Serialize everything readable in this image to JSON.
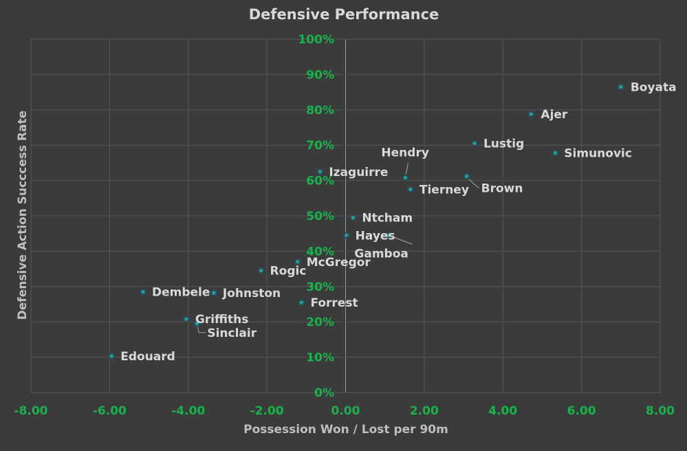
{
  "chart_data": {
    "type": "scatter",
    "title": "Defensive Performance",
    "xlabel": "Possession Won / Lost per 90m",
    "ylabel": "Defensive Action Succcess Rate",
    "xlim": [
      -8,
      8
    ],
    "ylim": [
      0,
      100
    ],
    "x_ticks": [
      "-8.00",
      "-6.00",
      "-4.00",
      "-2.00",
      "0.00",
      "2.00",
      "4.00",
      "6.00",
      "8.00"
    ],
    "y_ticks": [
      "0%",
      "10%",
      "20%",
      "30%",
      "40%",
      "50%",
      "60%",
      "70%",
      "80%",
      "90%",
      "100%"
    ],
    "grid": true,
    "colors": {
      "background": "#3b3b3b",
      "tick_text": "#16b44a",
      "point": "#1aa7a0",
      "label": "#d9d9d9"
    },
    "points": [
      {
        "label": "Boyata",
        "x": 7.0,
        "y": 86.5
      },
      {
        "label": "Ajer",
        "x": 4.72,
        "y": 78.8
      },
      {
        "label": "Lustig",
        "x": 3.28,
        "y": 70.5
      },
      {
        "label": "Simunovic",
        "x": 5.33,
        "y": 67.8
      },
      {
        "label": "Hendry",
        "x": 1.52,
        "y": 60.8
      },
      {
        "label": "Izaguirre",
        "x": -0.65,
        "y": 62.5
      },
      {
        "label": "Brown",
        "x": 3.08,
        "y": 61.2
      },
      {
        "label": "Tierney",
        "x": 1.65,
        "y": 57.5
      },
      {
        "label": "Ntcham",
        "x": 0.19,
        "y": 49.5
      },
      {
        "label": "Hayes",
        "x": 0.02,
        "y": 44.5
      },
      {
        "label": "Gamboa",
        "x": 1.1,
        "y": 44.5
      },
      {
        "label": "McGregor",
        "x": -1.22,
        "y": 37.0
      },
      {
        "label": "Rogic",
        "x": -2.15,
        "y": 34.5
      },
      {
        "label": "Dembele",
        "x": -5.15,
        "y": 28.5
      },
      {
        "label": "Johnston",
        "x": -3.35,
        "y": 28.2
      },
      {
        "label": "Forrest",
        "x": -1.12,
        "y": 25.5
      },
      {
        "label": "Griffiths",
        "x": -4.05,
        "y": 20.8
      },
      {
        "label": "Sinclair",
        "x": -3.78,
        "y": 19.5
      },
      {
        "label": "Edouard",
        "x": -5.95,
        "y": 10.3
      }
    ]
  }
}
